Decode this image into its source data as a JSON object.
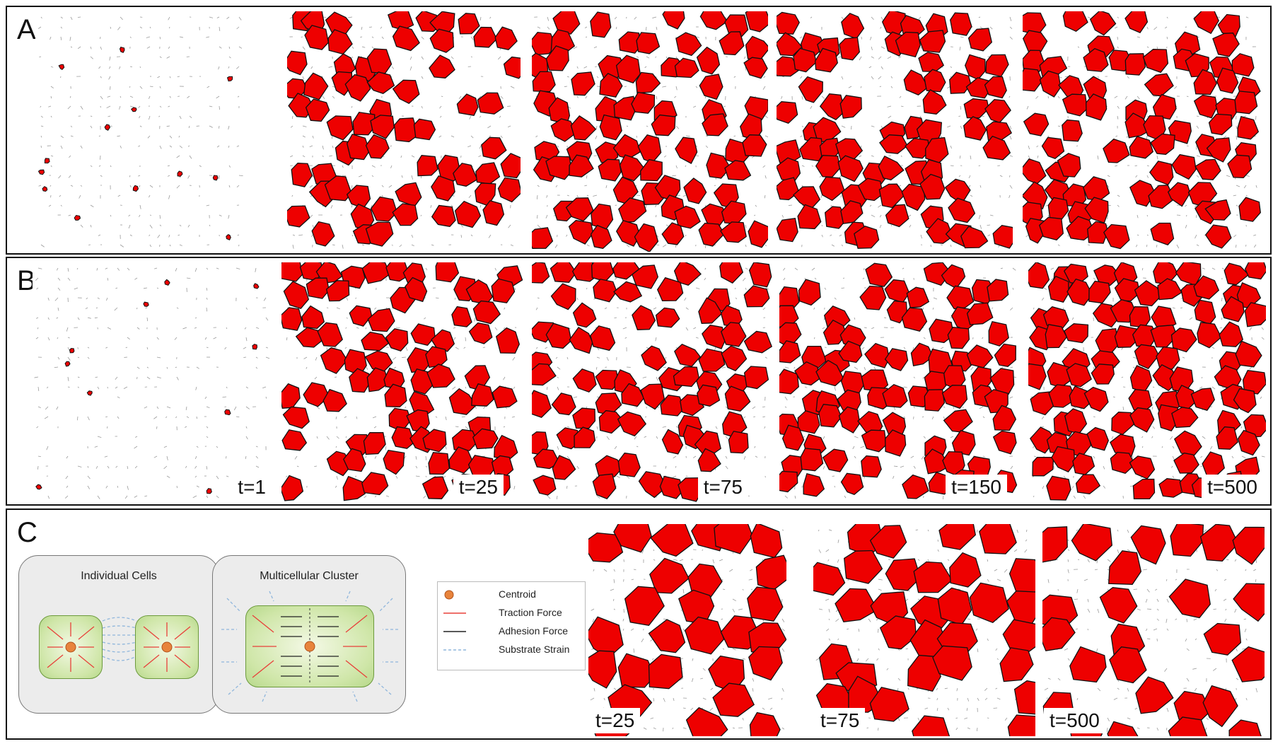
{
  "rows": [
    {
      "label": "A",
      "panels": [
        {
          "key": "a0",
          "density": 0.06,
          "seed": 11,
          "time": null
        },
        {
          "key": "a1",
          "density": 0.58,
          "seed": 23,
          "time": null
        },
        {
          "key": "a2",
          "density": 0.64,
          "seed": 37,
          "time": null
        },
        {
          "key": "a3",
          "density": 0.62,
          "seed": 41,
          "time": null
        },
        {
          "key": "a4",
          "density": 0.66,
          "seed": 53,
          "time": null
        }
      ]
    },
    {
      "label": "B",
      "panels": [
        {
          "key": "b0",
          "density": 0.06,
          "seed": 61,
          "time": "t=1"
        },
        {
          "key": "b1",
          "density": 0.6,
          "seed": 71,
          "time": "t=25"
        },
        {
          "key": "b2",
          "density": 0.62,
          "seed": 83,
          "time": "t=75"
        },
        {
          "key": "b3",
          "density": 0.7,
          "seed": 97,
          "time": "t=150"
        },
        {
          "key": "b4",
          "density": 0.75,
          "seed": 103,
          "time": "t=500"
        }
      ]
    },
    {
      "label": "C",
      "panels": [
        {
          "key": "c0",
          "density": 0.72,
          "seed": 113,
          "time": "t=25"
        },
        {
          "key": "c1",
          "density": 0.6,
          "seed": 127,
          "time": "t=75"
        },
        {
          "key": "c2",
          "density": 0.55,
          "seed": 131,
          "time": "t=500"
        }
      ]
    }
  ],
  "schematic": {
    "left_title": "Individual Cells",
    "right_title": "Multicellular Cluster"
  },
  "legend": [
    {
      "label": "Centroid",
      "icon": "centroid-dot",
      "color": "#e8843c"
    },
    {
      "label": "Traction Force",
      "icon": "red-arrow",
      "color": "#e8403a"
    },
    {
      "label": "Adhesion Force",
      "icon": "black-arrow",
      "color": "#222222"
    },
    {
      "label": "Substrate Strain",
      "icon": "dashed-line",
      "color": "#8fb6dc"
    }
  ],
  "colors": {
    "cell": "#ee0000",
    "outline": "#111111"
  }
}
